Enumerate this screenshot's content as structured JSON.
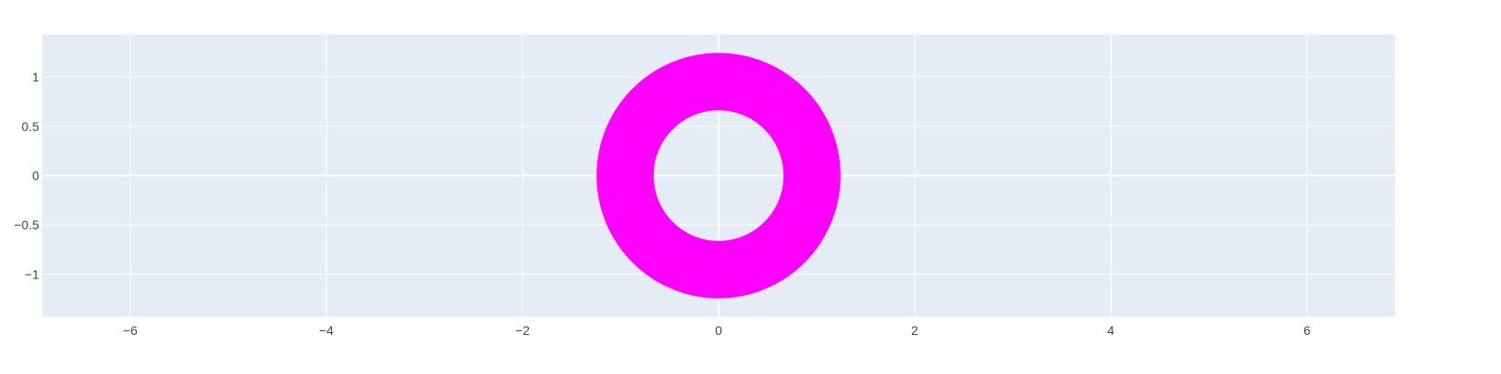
{
  "chart_data": {
    "type": "line",
    "title": "",
    "xlabel": "",
    "ylabel": "",
    "xlim": [
      -6.9,
      6.9
    ],
    "ylim": [
      -1.43,
      1.43
    ],
    "x_ticks": [
      -6,
      -4,
      -2,
      0,
      2,
      4,
      6
    ],
    "x_tick_labels": [
      "−6",
      "−4",
      "−2",
      "0",
      "2",
      "4",
      "6"
    ],
    "y_ticks": [
      -1,
      -0.5,
      0,
      0.5,
      1
    ],
    "y_tick_labels": [
      "−1",
      "−0.5",
      "0",
      "0.5",
      "1"
    ],
    "grid": true,
    "background_color": "#e5ecf6",
    "grid_color": "#ffffff",
    "series": [
      {
        "curve": "hypotrochoid",
        "color": "#ff00ff",
        "big_radius": 1.0,
        "small_radius": 0.054,
        "pen_distance": 0.29,
        "outer_radius": 1.29,
        "inner_radius": 0.71
      }
    ]
  }
}
